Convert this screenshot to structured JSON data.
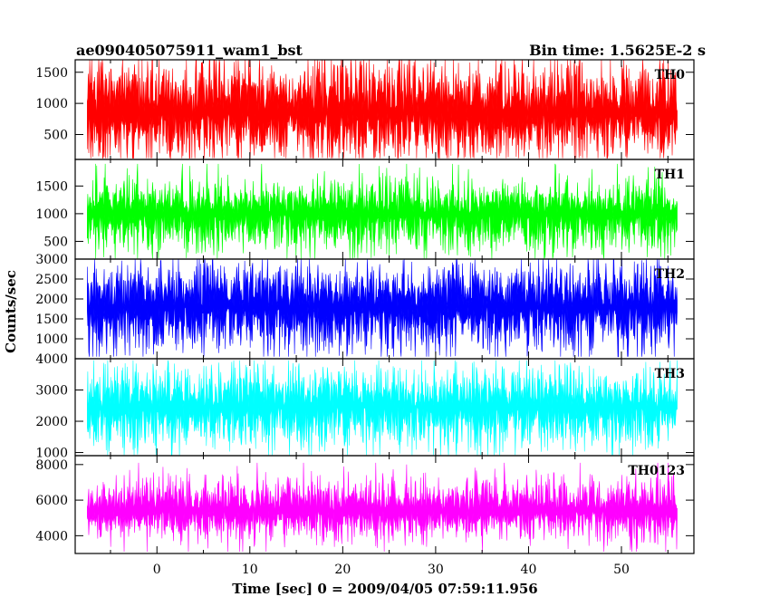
{
  "chart_data": {
    "type": "line",
    "title": "ae090405075911_wam1_bst",
    "subtitle": "Bin time: 1.5625E-2 s",
    "xlabel": "Time [sec] 0 = 2009/04/05 07:59:11.956",
    "ylabel": "Counts/sec",
    "xlim": [
      -8.8,
      57.8
    ],
    "xticks": [
      "0",
      "10",
      "20",
      "30",
      "40",
      "50"
    ],
    "x_start": -7.5,
    "x_end": 56.0,
    "grid": false,
    "panels": [
      {
        "name": "TH0",
        "color": "#ff0000",
        "ylim": [
          100,
          1700
        ],
        "yticks": [
          "500",
          "1000",
          "1500"
        ],
        "approx_values": {
          "low": 120,
          "q1": 610,
          "mean": 850,
          "q3": 1120,
          "high": 1700
        }
      },
      {
        "name": "TH1",
        "color": "#00ff00",
        "ylim": [
          180,
          1980
        ],
        "yticks": [
          "500",
          "1000",
          "1500"
        ],
        "approx_values": {
          "low": 190,
          "q1": 790,
          "mean": 1000,
          "q3": 1180,
          "high": 1900
        }
      },
      {
        "name": "TH2",
        "color": "#0000ff",
        "ylim": [
          500,
          3000
        ],
        "yticks": [
          "1000",
          "1500",
          "2000",
          "2500",
          "3000"
        ],
        "approx_values": {
          "low": 550,
          "q1": 1450,
          "mean": 1800,
          "q3": 2150,
          "high": 3000
        }
      },
      {
        "name": "TH3",
        "color": "#00ffff",
        "ylim": [
          900,
          4000
        ],
        "yticks": [
          "1000",
          "2000",
          "3000",
          "4000"
        ],
        "approx_values": {
          "low": 920,
          "q1": 2050,
          "mean": 2450,
          "q3": 2850,
          "high": 3950
        }
      },
      {
        "name": "TH0123",
        "color": "#ff00ff",
        "ylim": [
          3000,
          8500
        ],
        "yticks": [
          "4000",
          "6000",
          "8000"
        ],
        "approx_values": {
          "low": 3100,
          "q1": 4900,
          "mean": 5400,
          "q3": 5950,
          "high": 8100
        }
      }
    ]
  }
}
